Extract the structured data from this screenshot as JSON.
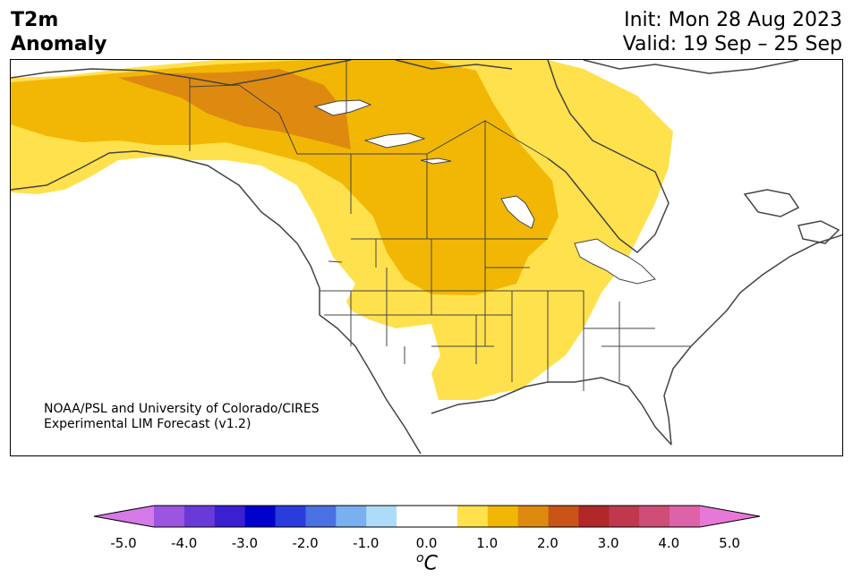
{
  "title": {
    "line1": "T2m",
    "line2": "Anomaly",
    "init": "Init: Mon 28 Aug 2023",
    "valid": "Valid: 19 Sep – 25 Sep"
  },
  "credit": {
    "line1": "NOAA/PSL and University of Colorado/CIRES",
    "line2": "Experimental LIM Forecast (v1.2)"
  },
  "colorbar": {
    "unit_sup": "o",
    "unit": "C",
    "colors": [
      "#d57ae8",
      "#9b55e0",
      "#6a3ad8",
      "#3a20d0",
      "#0000cc",
      "#2a3cdc",
      "#4a70e2",
      "#78b0f0",
      "#aedcf8",
      "#ffffff",
      "#ffffff",
      "#ffe14d",
      "#f2b705",
      "#de8a10",
      "#c85418",
      "#b02828",
      "#c0384e",
      "#cf4e78",
      "#de62a8",
      "#e878d8"
    ],
    "tick_labels": [
      "-5.0",
      "-4.0",
      "-3.0",
      "-2.0",
      "-1.0",
      "0.0",
      "1.0",
      "2.0",
      "3.0",
      "4.0",
      "5.0"
    ]
  },
  "legend_colors": {
    "anomaly_0_5_to_1": "#ffe14d",
    "anomaly_1_to_1_5": "#f2b705",
    "anomaly_1_5_to_2": "#de8a10"
  }
}
